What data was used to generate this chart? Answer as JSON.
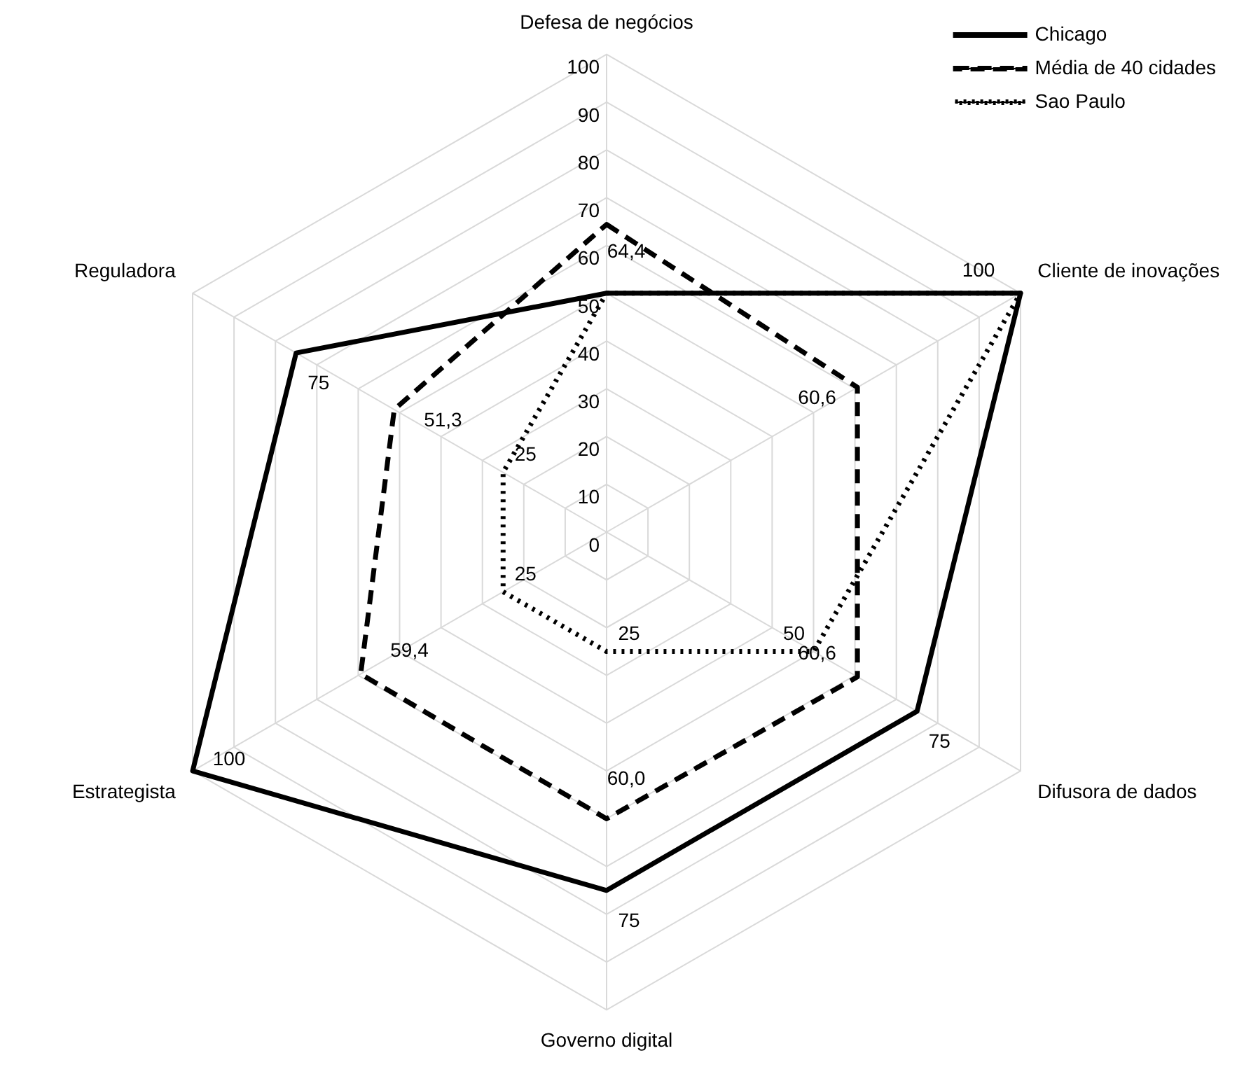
{
  "chart_data": {
    "type": "radar",
    "categories": [
      "Defesa de negócios",
      "Cliente de inovações",
      "Difusora de dados",
      "Governo digital",
      "Estrategista",
      "Reguladora"
    ],
    "series": [
      {
        "name": "Chicago",
        "color": "#000000",
        "line_style": "solid",
        "values": [
          50,
          100,
          75,
          75,
          100,
          75
        ],
        "value_labels": [
          null,
          "100",
          "75",
          "75",
          "100",
          "75"
        ]
      },
      {
        "name": "Média de 40 cidades",
        "color": "#000000",
        "line_style": "dashed",
        "values": [
          64.4,
          60.6,
          60.6,
          60.0,
          59.4,
          51.3
        ],
        "value_labels": [
          "64,4",
          "60,6",
          "60,6",
          "60,0",
          "59,4",
          "51,3"
        ]
      },
      {
        "name": "Sao Paulo",
        "color": "#000000",
        "line_style": "dotted",
        "values": [
          50,
          100,
          50,
          25,
          25,
          25
        ],
        "value_labels": [
          null,
          null,
          "50",
          "25",
          "25",
          "25"
        ]
      }
    ],
    "ylim": [
      0,
      100
    ],
    "yticks": [
      0,
      10,
      20,
      30,
      40,
      50,
      60,
      70,
      80,
      90,
      100
    ],
    "grid": true,
    "legend": "top right",
    "marker": "none"
  }
}
